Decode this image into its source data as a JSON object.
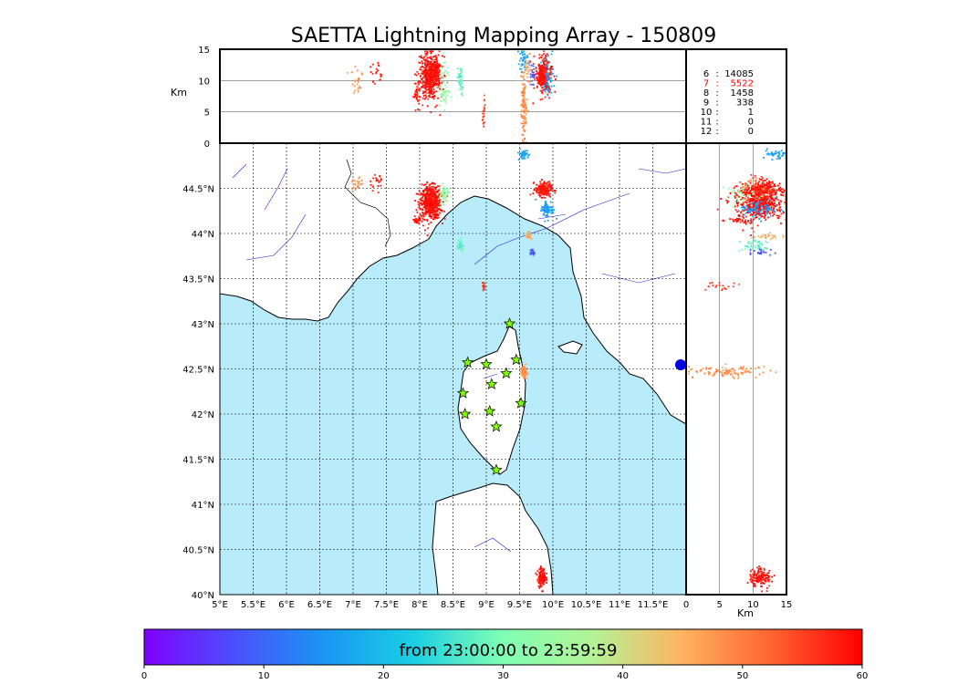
{
  "chart_data": {
    "type": "scatter",
    "title": "SAETTA Lightning Mapping Array - 150809",
    "map": {
      "xlim": [
        5,
        12
      ],
      "ylim": [
        40,
        45
      ],
      "xticks": [
        "5°E",
        "5.5°E",
        "6°E",
        "6.5°E",
        "7°E",
        "7.5°E",
        "8°E",
        "8.5°E",
        "9°E",
        "9.5°E",
        "10°E",
        "10.5°E",
        "11°E",
        "11.5°E"
      ],
      "yticks": [
        "40°N",
        "40.5°N",
        "41°N",
        "41.5°N",
        "42°N",
        "42.5°N",
        "43°N",
        "43.5°N",
        "44°N",
        "44.5°N"
      ],
      "grid": true
    },
    "altitude_lon_panel": {
      "ylabel": "Km",
      "ylim": [
        0,
        15
      ],
      "yticks": [
        "0",
        "5",
        "10",
        "15"
      ]
    },
    "altitude_lat_panel": {
      "xlabel": "Km",
      "xlim": [
        0,
        15
      ],
      "xticks": [
        "0",
        "5",
        "10",
        "15"
      ]
    },
    "station_counts": [
      {
        "stations": "6",
        "count": "14085",
        "color": "#000000"
      },
      {
        "stations": "7",
        "count": "5522",
        "color": "#ff0000"
      },
      {
        "stations": "8",
        "count": "1458",
        "color": "#000000"
      },
      {
        "stations": "9",
        "count": "338",
        "color": "#000000"
      },
      {
        "stations": "10",
        "count": "1",
        "color": "#000000"
      },
      {
        "stations": "11",
        "count": "0",
        "color": "#000000"
      },
      {
        "stations": "12",
        "count": "0",
        "color": "#000000"
      }
    ],
    "stations_lonlat": [
      [
        9.35,
        43.0
      ],
      [
        8.72,
        42.57
      ],
      [
        9.0,
        42.55
      ],
      [
        9.45,
        42.6
      ],
      [
        9.3,
        42.45
      ],
      [
        9.08,
        42.33
      ],
      [
        8.65,
        42.23
      ],
      [
        9.52,
        42.12
      ],
      [
        9.05,
        42.03
      ],
      [
        8.68,
        42.0
      ],
      [
        9.15,
        41.86
      ],
      [
        9.15,
        41.38
      ]
    ],
    "station_color": "#80ff00",
    "colorbar": {
      "label": "from 23:00:00 to 23:59:59",
      "range": [
        0,
        60
      ],
      "ticks": [
        "0",
        "10",
        "20",
        "30",
        "40",
        "50",
        "60"
      ],
      "colormap": "rainbow"
    },
    "clusters": [
      {
        "lon": 8.15,
        "lat": 44.35,
        "alt": 11,
        "time": 59,
        "n": 550,
        "sx": 0.08,
        "sy": 0.09,
        "sz": 1.7
      },
      {
        "lon": 8.35,
        "lat": 44.45,
        "alt": 9,
        "time": 33,
        "n": 60,
        "sx": 0.04,
        "sy": 0.05,
        "sz": 2.0
      },
      {
        "lon": 7.95,
        "lat": 44.15,
        "alt": 8,
        "time": 58,
        "n": 35,
        "sx": 0.03,
        "sy": 0.02,
        "sz": 1.0
      },
      {
        "lon": 9.85,
        "lat": 44.5,
        "alt": 11,
        "time": 58,
        "n": 220,
        "sx": 0.06,
        "sy": 0.04,
        "sz": 1.5
      },
      {
        "lon": 9.9,
        "lat": 44.28,
        "alt": 11,
        "time": 16,
        "n": 80,
        "sx": 0.05,
        "sy": 0.05,
        "sz": 1.4
      },
      {
        "lon": 9.55,
        "lat": 44.88,
        "alt": 13,
        "time": 17,
        "n": 40,
        "sx": 0.04,
        "sy": 0.03,
        "sz": 1.0
      },
      {
        "lon": 9.55,
        "lat": 42.48,
        "alt": 6,
        "time": 48,
        "n": 120,
        "sx": 0.02,
        "sy": 0.03,
        "sz": 2.6
      },
      {
        "lon": 8.6,
        "lat": 43.88,
        "alt": 10,
        "time": 28,
        "n": 50,
        "sx": 0.02,
        "sy": 0.04,
        "sz": 1.2
      },
      {
        "lon": 9.62,
        "lat": 43.98,
        "alt": 12,
        "time": 46,
        "n": 25,
        "sx": 0.02,
        "sy": 0.02,
        "sz": 1.0
      },
      {
        "lon": 9.68,
        "lat": 43.8,
        "alt": 11,
        "time": 8,
        "n": 20,
        "sx": 0.02,
        "sy": 0.02,
        "sz": 1.0
      },
      {
        "lon": 9.82,
        "lat": 40.2,
        "alt": 11,
        "time": 59,
        "n": 140,
        "sx": 0.03,
        "sy": 0.05,
        "sz": 0.8
      },
      {
        "lon": 8.95,
        "lat": 43.42,
        "alt": 5,
        "time": 55,
        "n": 20,
        "sx": 0.01,
        "sy": 0.02,
        "sz": 1.2
      },
      {
        "lon": 7.05,
        "lat": 44.55,
        "alt": 10,
        "time": 48,
        "n": 25,
        "sx": 0.05,
        "sy": 0.05,
        "sz": 1.0
      },
      {
        "lon": 7.35,
        "lat": 44.6,
        "alt": 12,
        "time": 58,
        "n": 20,
        "sx": 0.05,
        "sy": 0.05,
        "sz": 1.2
      }
    ]
  }
}
